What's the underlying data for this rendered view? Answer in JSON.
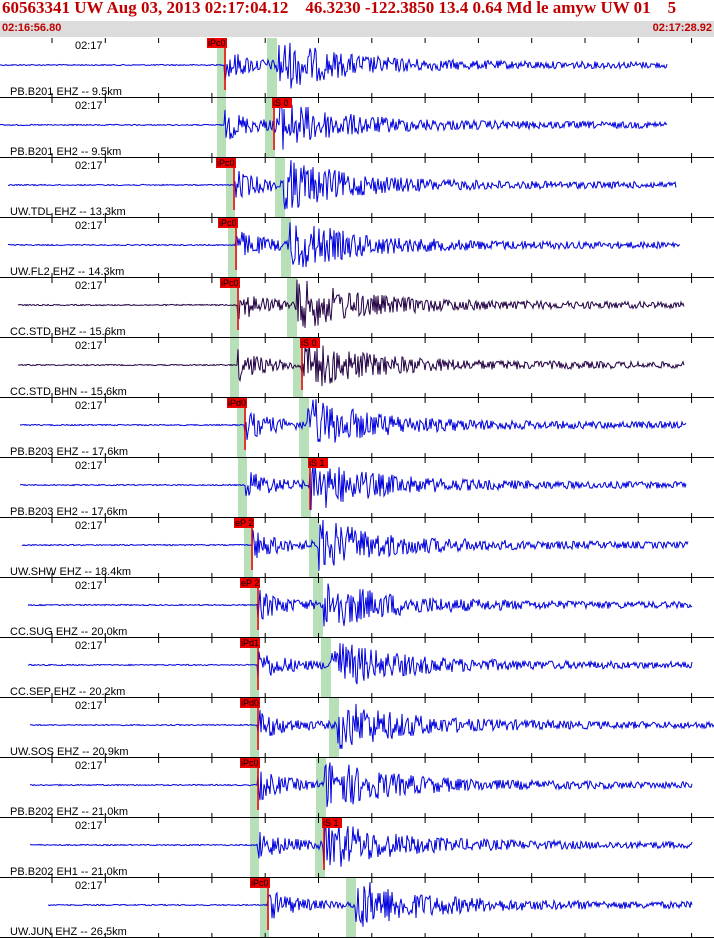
{
  "header": {
    "title": "60563341 UW Aug 03, 2013 02:17:04.12    46.3230 -122.3850 13.4 0.64 Md le amyw UW 01    5",
    "start_time": "02:16:56.80",
    "end_time": "02:17:28.92"
  },
  "colors": {
    "trace_blue": "#0000dd",
    "trace_dark": "#220044",
    "pick_red": "#ee0000",
    "window_green": "#b8e0b8",
    "title_red": "#c00000"
  },
  "traces": [
    {
      "time": "02:17",
      "label": "PB.B201 EHZ -- 9.5km",
      "pick": "iPc0",
      "color": "blue"
    },
    {
      "time": "02:17",
      "label": "PB.B201 EH2 -- 9.5km",
      "pick": "iS 0",
      "color": "blue"
    },
    {
      "time": "02:17",
      "label": "UW.TDL EHZ -- 13.3km",
      "pick": "iPc0",
      "color": "blue"
    },
    {
      "time": "02:17",
      "label": "UW.FL2 EHZ -- 14.3km",
      "pick": "iPc0",
      "color": "blue"
    },
    {
      "time": "02:17",
      "label": "CC.STD BHZ -- 15.6km",
      "pick": "iPc0",
      "color": "dark"
    },
    {
      "time": "02:17",
      "label": "CC.STD BHN -- 15.6km",
      "pick": "iS 0",
      "color": "dark"
    },
    {
      "time": "02:17",
      "label": "PB.B203 EHZ -- 17.6km",
      "pick": "iPd0",
      "color": "blue"
    },
    {
      "time": "02:17",
      "label": "PB.B203 EH2 -- 17.6km",
      "pick": "iS 1",
      "color": "blue"
    },
    {
      "time": "02:17",
      "label": "UW.SHW EHZ -- 18.4km",
      "pick": "eP 2",
      "color": "blue"
    },
    {
      "time": "02:17",
      "label": "CC.SUG EHZ -- 20.0km",
      "pick": "eP 2",
      "color": "blue"
    },
    {
      "time": "02:17",
      "label": "CC.SEP EHZ -- 20.2km",
      "pick": "iPd1",
      "color": "blue"
    },
    {
      "time": "02:17",
      "label": "UW.SOS EHZ -- 20.9km",
      "pick": "iPd0",
      "color": "blue"
    },
    {
      "time": "02:17",
      "label": "PB.B202 EHZ -- 21.0km",
      "pick": "iPc0",
      "color": "blue"
    },
    {
      "time": "02:17",
      "label": "PB.B202 EH1 -- 21.0km",
      "pick": "iS 1",
      "color": "blue"
    },
    {
      "time": "02:17",
      "label": "UW.JUN EHZ -- 26.5km",
      "pick": "iPc0",
      "color": "blue"
    }
  ]
}
